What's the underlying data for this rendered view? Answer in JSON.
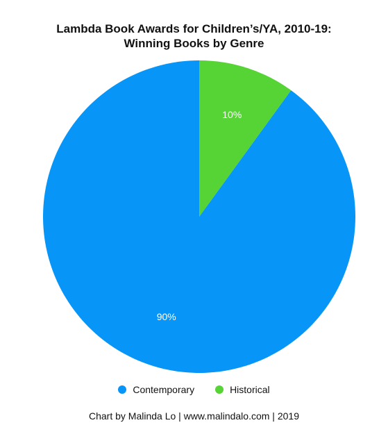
{
  "chart_data": {
    "type": "pie",
    "title": [
      "Lambda Book Awards for Children’s/YA, 2010-19:",
      "Winning Books by Genre"
    ],
    "slices": [
      {
        "name": "Contemporary",
        "value": 90,
        "label": "90%",
        "color": "#0796f7"
      },
      {
        "name": "Historical",
        "value": 10,
        "label": "10%",
        "color": "#56d335"
      }
    ],
    "start": "top (12 o'clock), clockwise",
    "legend": "bottom"
  },
  "footer": {
    "credit": "Chart by Malinda Lo | www.malindalo.com | 2019"
  }
}
